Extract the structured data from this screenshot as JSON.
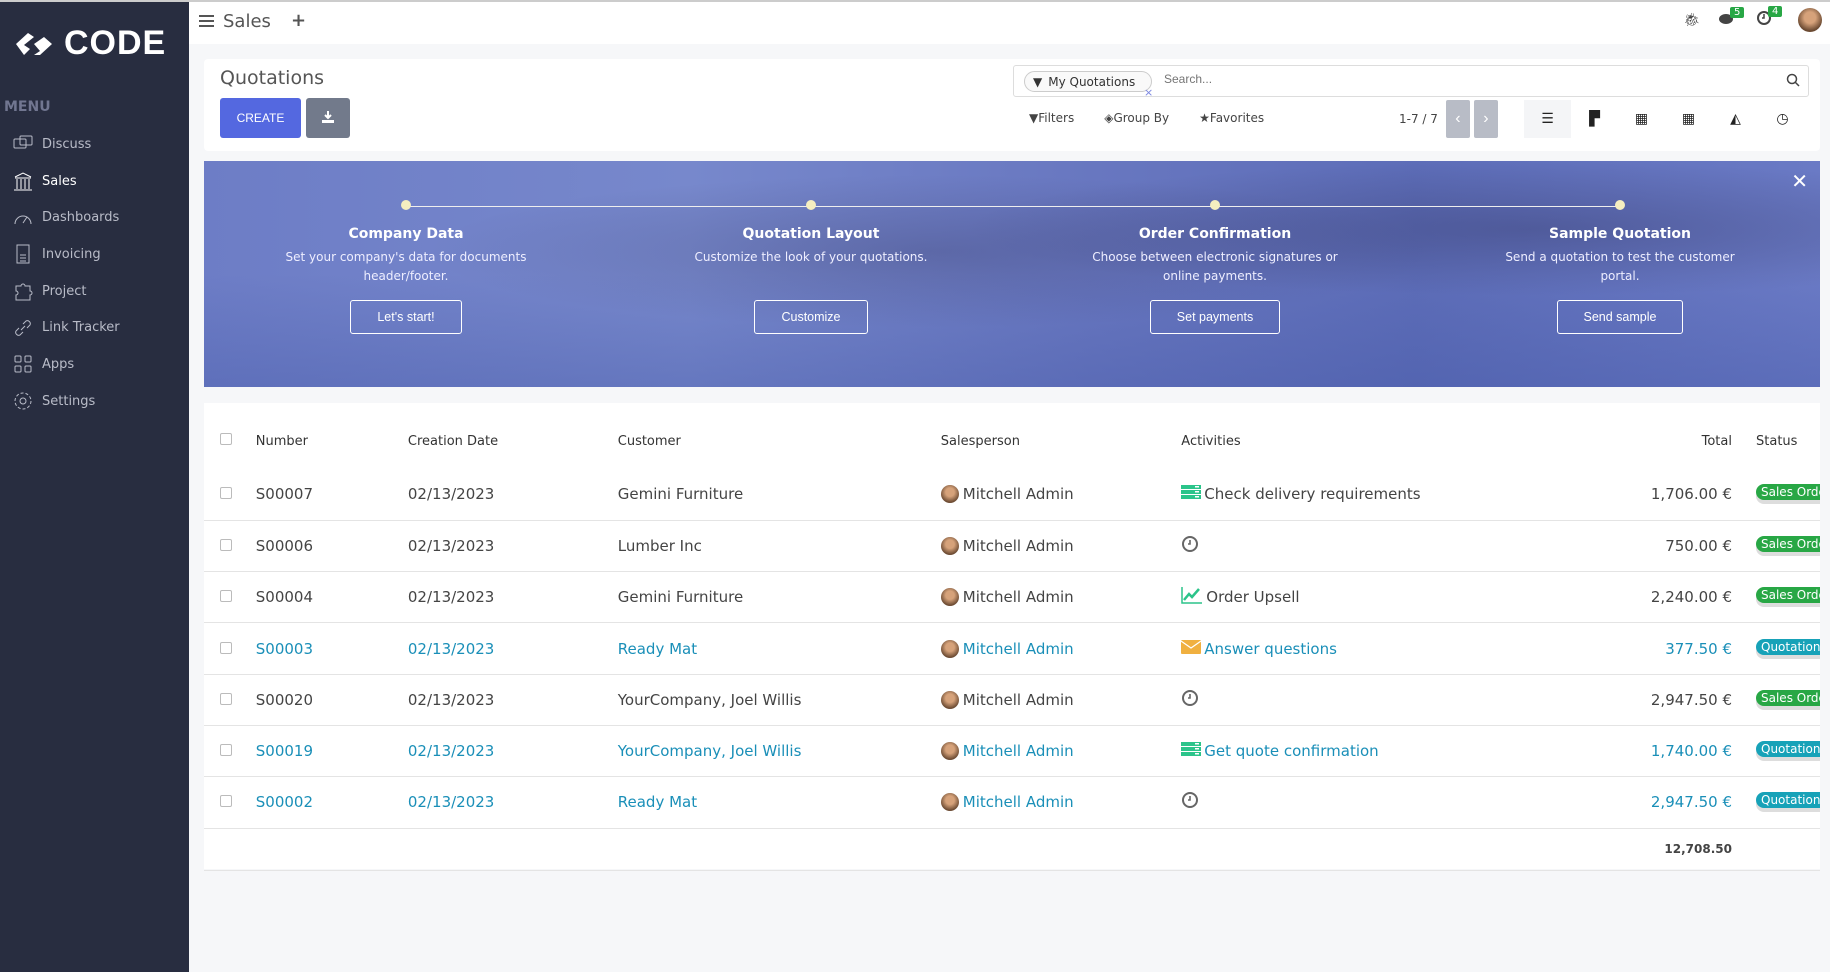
{
  "brand": {
    "name": "CODE"
  },
  "sidebar": {
    "menu_label": "MENU",
    "items": [
      {
        "label": "Discuss",
        "icon": "chat-icon"
      },
      {
        "label": "Sales",
        "icon": "bank-icon",
        "active": true
      },
      {
        "label": "Dashboards",
        "icon": "gauge-icon"
      },
      {
        "label": "Invoicing",
        "icon": "invoice-icon"
      },
      {
        "label": "Project",
        "icon": "puzzle-icon"
      },
      {
        "label": "Link Tracker",
        "icon": "link-icon"
      },
      {
        "label": "Apps",
        "icon": "grid-icon"
      },
      {
        "label": "Settings",
        "icon": "gear-icon"
      }
    ]
  },
  "topbar": {
    "app": "Sales",
    "messages_count": "5",
    "activities_count": "4"
  },
  "control": {
    "title": "Quotations",
    "create_label": "CREATE",
    "facet": "My Quotations",
    "search_placeholder": "Search...",
    "filters": "Filters",
    "group_by": "Group By",
    "favorites": "Favorites",
    "pager": "1-7 / 7"
  },
  "banner": {
    "steps": [
      {
        "title": "Company Data",
        "text": "Set your company's data for documents header/footer.",
        "button": "Let's start!"
      },
      {
        "title": "Quotation Layout",
        "text": "Customize the look of your quotations.",
        "button": "Customize"
      },
      {
        "title": "Order Confirmation",
        "text": "Choose between electronic signatures or online payments.",
        "button": "Set payments"
      },
      {
        "title": "Sample Quotation",
        "text": "Send a quotation to test the customer portal.",
        "button": "Send sample"
      }
    ]
  },
  "table": {
    "headers": [
      "Number",
      "Creation Date",
      "Customer",
      "Salesperson",
      "Activities",
      "Total",
      "Status"
    ],
    "rows": [
      {
        "number": "S00007",
        "date": "02/13/2023",
        "customer": "Gemini Furniture",
        "salesperson": "Mitchell Admin",
        "activity": "Check delivery requirements",
        "activity_icon": "tasks-icon",
        "total": "1,706.00 €",
        "status": "Sales Order",
        "link": false
      },
      {
        "number": "S00006",
        "date": "02/13/2023",
        "customer": "Lumber Inc",
        "salesperson": "Mitchell Admin",
        "activity": "",
        "activity_icon": "clock-icon",
        "total": "750.00 €",
        "status": "Sales Order",
        "link": false
      },
      {
        "number": "S00004",
        "date": "02/13/2023",
        "customer": "Gemini Furniture",
        "salesperson": "Mitchell Admin",
        "activity": "Order Upsell",
        "activity_icon": "chart-line-icon",
        "total": "2,240.00 €",
        "status": "Sales Order",
        "link": false
      },
      {
        "number": "S00003",
        "date": "02/13/2023",
        "customer": "Ready Mat",
        "salesperson": "Mitchell Admin",
        "activity": "Answer questions",
        "activity_icon": "envelope-icon",
        "total": "377.50 €",
        "status": "Quotation",
        "link": true
      },
      {
        "number": "S00020",
        "date": "02/13/2023",
        "customer": "YourCompany, Joel Willis",
        "salesperson": "Mitchell Admin",
        "activity": "",
        "activity_icon": "clock-icon",
        "total": "2,947.50 €",
        "status": "Sales Order",
        "link": false
      },
      {
        "number": "S00019",
        "date": "02/13/2023",
        "customer": "YourCompany, Joel Willis",
        "salesperson": "Mitchell Admin",
        "activity": "Get quote confirmation",
        "activity_icon": "tasks-icon",
        "total": "1,740.00 €",
        "status": "Quotation",
        "link": true
      },
      {
        "number": "S00002",
        "date": "02/13/2023",
        "customer": "Ready Mat",
        "salesperson": "Mitchell Admin",
        "activity": "",
        "activity_icon": "clock-icon",
        "total": "2,947.50 €",
        "status": "Quotation",
        "link": true
      }
    ],
    "sum_total": "12,708.50"
  },
  "colors": {
    "sidebar": "#282d40",
    "primary": "#5468e0",
    "sales_order": "#28a745",
    "quotation": "#17a2b8",
    "link": "#1a8fb8"
  }
}
